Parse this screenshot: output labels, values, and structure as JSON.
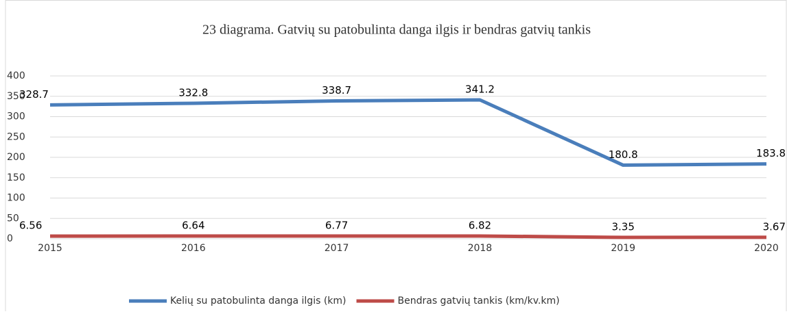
{
  "chart_data": {
    "type": "line",
    "title": "23 diagrama. Gatvių su patobulinta danga ilgis ir bendras gatvių tankis",
    "categories": [
      "2015",
      "2016",
      "2017",
      "2018",
      "2019",
      "2020"
    ],
    "series": [
      {
        "name": "Kelių su patobulinta danga ilgis (km)",
        "color": "#4a7ebb",
        "values": [
          328.7,
          332.8,
          338.7,
          341.2,
          180.8,
          183.8
        ]
      },
      {
        "name": "Bendras gatvių tankis (km/kv.km)",
        "color": "#be4b48",
        "values": [
          6.56,
          6.64,
          6.77,
          6.82,
          3.35,
          3.67
        ]
      }
    ],
    "ylim": [
      0,
      400
    ],
    "yticks": [
      0,
      50,
      100,
      150,
      200,
      250,
      300,
      350,
      400
    ],
    "grid": true
  }
}
